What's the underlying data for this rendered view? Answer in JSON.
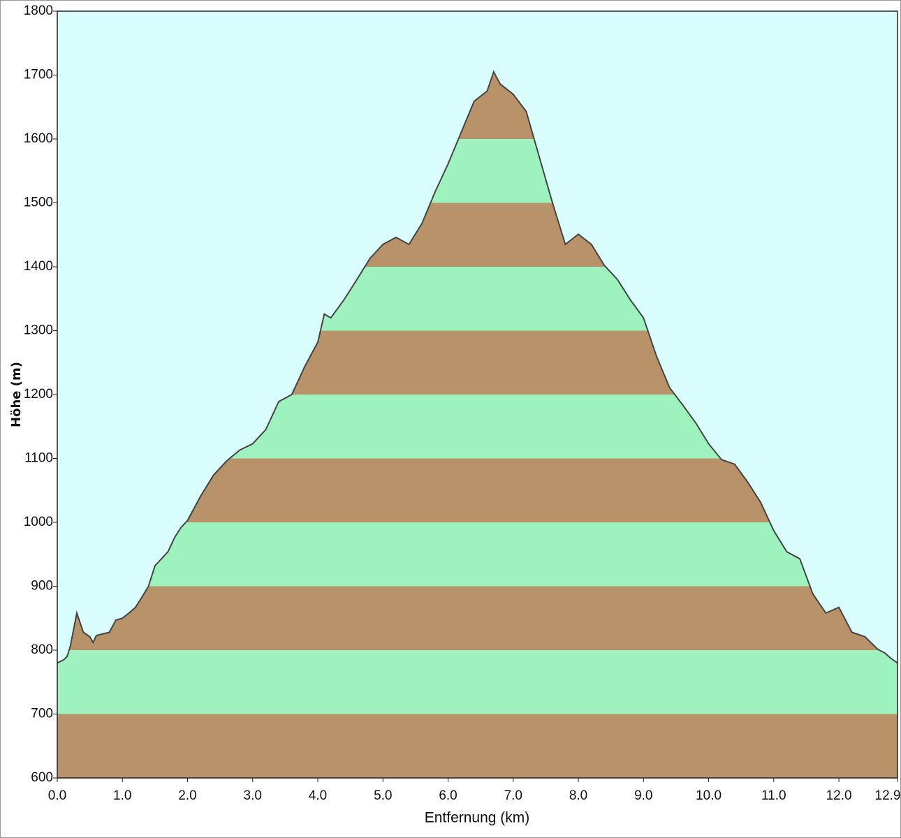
{
  "chart_data": {
    "type": "area",
    "x_label": "Entfernung  (km)",
    "y_label": "Höhe (m)",
    "x": [
      0.0,
      0.1,
      0.15,
      0.2,
      0.3,
      0.4,
      0.5,
      0.55,
      0.6,
      0.8,
      0.9,
      1.0,
      1.1,
      1.2,
      1.3,
      1.4,
      1.5,
      1.6,
      1.7,
      1.8,
      1.9,
      2.0,
      2.2,
      2.4,
      2.6,
      2.8,
      3.0,
      3.2,
      3.4,
      3.6,
      3.8,
      4.0,
      4.1,
      4.2,
      4.4,
      4.6,
      4.8,
      5.0,
      5.2,
      5.4,
      5.6,
      5.8,
      6.0,
      6.2,
      6.4,
      6.6,
      6.7,
      6.8,
      7.0,
      7.2,
      7.4,
      7.6,
      7.8,
      8.0,
      8.2,
      8.4,
      8.6,
      8.8,
      9.0,
      9.2,
      9.4,
      9.6,
      9.8,
      10.0,
      10.2,
      10.4,
      10.6,
      10.8,
      11.0,
      11.2,
      11.4,
      11.6,
      11.8,
      12.0,
      12.2,
      12.4,
      12.6,
      12.7,
      12.8,
      12.9
    ],
    "values": [
      780,
      785,
      790,
      806,
      858,
      828,
      821,
      812,
      823,
      828,
      847,
      850,
      858,
      867,
      883,
      900,
      932,
      943,
      954,
      976,
      992,
      1003,
      1041,
      1074,
      1096,
      1113,
      1123,
      1145,
      1189,
      1200,
      1244,
      1282,
      1326,
      1320,
      1348,
      1380,
      1413,
      1435,
      1446,
      1435,
      1468,
      1517,
      1561,
      1610,
      1659,
      1675,
      1705,
      1686,
      1670,
      1643,
      1572,
      1501,
      1435,
      1451,
      1435,
      1402,
      1380,
      1348,
      1320,
      1260,
      1211,
      1184,
      1156,
      1123,
      1098,
      1091,
      1063,
      1031,
      987,
      954,
      943,
      888,
      858,
      867,
      828,
      821,
      801,
      796,
      787,
      780
    ],
    "color": "#444444",
    "background": "#d9fdfd",
    "band_colors": [
      "#b89268",
      "#9ef2be"
    ],
    "xlim": [
      0,
      12.9
    ],
    "xticks": [
      {
        "value": 0,
        "label": "0.0"
      },
      {
        "value": 1,
        "label": "1.0"
      },
      {
        "value": 2,
        "label": "2.0"
      },
      {
        "value": 3,
        "label": "3.0"
      },
      {
        "value": 4,
        "label": "4.0"
      },
      {
        "value": 5,
        "label": "5.0"
      },
      {
        "value": 6,
        "label": "6.0"
      },
      {
        "value": 7,
        "label": "7.0"
      },
      {
        "value": 8,
        "label": "8.0"
      },
      {
        "value": 9,
        "label": "9.0"
      },
      {
        "value": 10,
        "label": "10.0"
      },
      {
        "value": 11,
        "label": "11.0"
      },
      {
        "value": 12,
        "label": "12.0"
      },
      12.9
    ],
    "ylim": [
      600,
      1800
    ],
    "yticks": [
      600,
      700,
      800,
      900,
      1000,
      1100,
      1200,
      1300,
      1400,
      1500,
      1600,
      1700,
      1800
    ]
  }
}
